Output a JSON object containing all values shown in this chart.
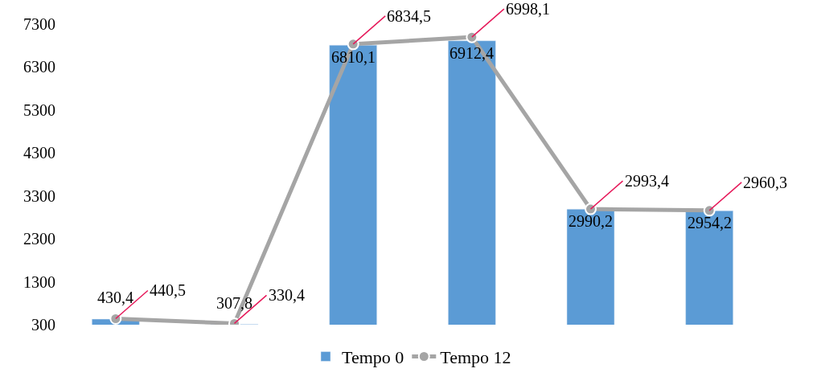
{
  "chart_data": {
    "type": "bar",
    "categories": [
      null,
      null,
      null,
      null,
      null,
      null
    ],
    "series": [
      {
        "name": "Tempo 0",
        "color": "#5b9bd5",
        "values": [
          430.4,
          307.8,
          6810.1,
          6912.4,
          2990.2,
          2954.2
        ],
        "value_labels": [
          "430,4",
          "307,8",
          "6810,1",
          "6912,4",
          "2990,2",
          "2954,2"
        ]
      },
      {
        "name": "Tempo 12",
        "type": "line",
        "color": "#a5a5a5",
        "values": [
          440.5,
          330.4,
          6834.5,
          6998.1,
          2993.4,
          2960.3
        ],
        "value_labels": [
          "440,5",
          "330,4",
          "6834,5",
          "6998,1",
          "2993,4",
          "2960,3"
        ]
      }
    ],
    "ylim": [
      300,
      7300
    ],
    "yticks": [
      300,
      1300,
      2300,
      3300,
      4300,
      5300,
      6300,
      7300
    ],
    "legend": "bottom",
    "marker": "circle"
  }
}
